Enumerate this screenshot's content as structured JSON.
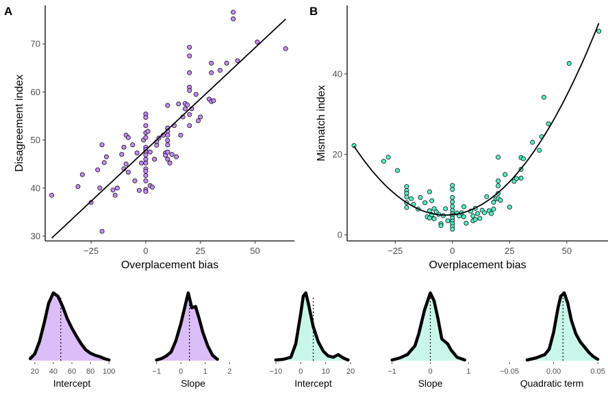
{
  "chart_data": [
    {
      "panel": "A",
      "type": "scatter",
      "xlabel": "Overplacement bias",
      "ylabel": "Disagreement index",
      "xticks": [
        -25,
        0,
        25,
        50
      ],
      "yticks": [
        30,
        40,
        50,
        60,
        70
      ],
      "xlim": [
        -46,
        68
      ],
      "ylim": [
        29,
        78
      ],
      "color": "#c58af5",
      "fit": {
        "kind": "linear",
        "intercept": 47.9,
        "slope": 0.426,
        "x_range": [
          -43,
          64
        ]
      },
      "points": [
        [
          -43,
          38.5
        ],
        [
          -31,
          40.3
        ],
        [
          -29,
          42.8
        ],
        [
          -25,
          37
        ],
        [
          -22,
          43.8
        ],
        [
          -21,
          40
        ],
        [
          -20,
          49
        ],
        [
          -20,
          31
        ],
        [
          -19,
          45.3
        ],
        [
          -18,
          46.5
        ],
        [
          -15,
          39.6
        ],
        [
          -14,
          38.5
        ],
        [
          -13,
          40
        ],
        [
          -11,
          47
        ],
        [
          -10,
          48.5
        ],
        [
          -10,
          44
        ],
        [
          -9,
          45
        ],
        [
          -9,
          51
        ],
        [
          -8,
          50.5
        ],
        [
          -8,
          43.3
        ],
        [
          -6,
          49
        ],
        [
          -5,
          41.5
        ],
        [
          -4,
          47.3
        ],
        [
          -3,
          39.5
        ],
        [
          -2,
          45.2
        ],
        [
          -1,
          50
        ],
        [
          0,
          55.4
        ],
        [
          0,
          54.7
        ],
        [
          0,
          53
        ],
        [
          0,
          51.5
        ],
        [
          0,
          50.5
        ],
        [
          0,
          48.5
        ],
        [
          0,
          48
        ],
        [
          0,
          47.5
        ],
        [
          0,
          46.9
        ],
        [
          0,
          46
        ],
        [
          0,
          45.2
        ],
        [
          0,
          44
        ],
        [
          0,
          43.5
        ],
        [
          0,
          42.6
        ],
        [
          0,
          41.5
        ],
        [
          0,
          39.7
        ],
        [
          0,
          39.3
        ],
        [
          1,
          51.8
        ],
        [
          2,
          47.5
        ],
        [
          2,
          40.5
        ],
        [
          3,
          40.2
        ],
        [
          4,
          46
        ],
        [
          5,
          49.6
        ],
        [
          5,
          48.9
        ],
        [
          6,
          50.4
        ],
        [
          8,
          51
        ],
        [
          9,
          47.3
        ],
        [
          9,
          46.8
        ],
        [
          10,
          57.2
        ],
        [
          10,
          52.5
        ],
        [
          10,
          51.8
        ],
        [
          10,
          51
        ],
        [
          10,
          49.9
        ],
        [
          10,
          49
        ],
        [
          10,
          47.5
        ],
        [
          10,
          46
        ],
        [
          11,
          45.2
        ],
        [
          12,
          47
        ],
        [
          13,
          53
        ],
        [
          14,
          46.5
        ],
        [
          15,
          57.5
        ],
        [
          16,
          51
        ],
        [
          17,
          54.8
        ],
        [
          18,
          57.6
        ],
        [
          18,
          56.5
        ],
        [
          19,
          57.3
        ],
        [
          20,
          69.3
        ],
        [
          20,
          67.5
        ],
        [
          20,
          64
        ],
        [
          20,
          61
        ],
        [
          20,
          60.3
        ],
        [
          20,
          55.3
        ],
        [
          20,
          53
        ],
        [
          21,
          56.5
        ],
        [
          23,
          59.5
        ],
        [
          24,
          54
        ],
        [
          25,
          54.8
        ],
        [
          29,
          58.5
        ],
        [
          30,
          66
        ],
        [
          30,
          64
        ],
        [
          30,
          58
        ],
        [
          31,
          58.2
        ],
        [
          34,
          64.5
        ],
        [
          37,
          66
        ],
        [
          40,
          76.6
        ],
        [
          40,
          75.2
        ],
        [
          42,
          66.5
        ],
        [
          51,
          70.4
        ],
        [
          64,
          69
        ]
      ]
    },
    {
      "panel": "B",
      "type": "scatter",
      "xlabel": "Overplacement bias",
      "ylabel": "Mismatch index",
      "xticks": [
        -25,
        0,
        25,
        50
      ],
      "yticks": [
        0,
        20,
        40
      ],
      "xlim": [
        -46,
        68
      ],
      "ylim": [
        -1.5,
        57
      ],
      "color": "#52f0c8",
      "fit": {
        "kind": "quadratic",
        "a": 5.0,
        "b": 0.062,
        "c": 0.01065,
        "x_range": [
          -43,
          64
        ]
      },
      "points": [
        [
          -43,
          22.2
        ],
        [
          -30,
          18.3
        ],
        [
          -28,
          19.3
        ],
        [
          -24,
          16
        ],
        [
          -20,
          12
        ],
        [
          -20,
          11
        ],
        [
          -20,
          10.3
        ],
        [
          -20,
          9.4
        ],
        [
          -20,
          8
        ],
        [
          -20,
          6.8
        ],
        [
          -18,
          9
        ],
        [
          -17,
          7.6
        ],
        [
          -15,
          6.4
        ],
        [
          -14,
          9.3
        ],
        [
          -12,
          8
        ],
        [
          -11,
          4.5
        ],
        [
          -10,
          10.7
        ],
        [
          -10,
          6
        ],
        [
          -10,
          4.2
        ],
        [
          -9,
          5
        ],
        [
          -9,
          8.5
        ],
        [
          -8,
          4
        ],
        [
          -8,
          6.5
        ],
        [
          -7,
          5.7
        ],
        [
          -6,
          5.1
        ],
        [
          -5,
          2.8
        ],
        [
          -5,
          2.3
        ],
        [
          -4,
          4.8
        ],
        [
          -3,
          6.5
        ],
        [
          -2,
          3.5
        ],
        [
          0,
          12.3
        ],
        [
          0,
          11.3
        ],
        [
          0,
          9.3
        ],
        [
          0,
          8.2
        ],
        [
          0,
          7.1
        ],
        [
          0,
          6.1
        ],
        [
          0,
          5.3
        ],
        [
          0,
          4.8
        ],
        [
          0,
          4.1
        ],
        [
          0,
          3.4
        ],
        [
          0,
          2.8
        ],
        [
          0,
          2.1
        ],
        [
          0,
          1.4
        ],
        [
          2,
          5.4
        ],
        [
          3,
          4.7
        ],
        [
          4,
          5.5
        ],
        [
          5,
          7
        ],
        [
          5,
          4.5
        ],
        [
          6,
          2.9
        ],
        [
          8,
          5.9
        ],
        [
          9,
          4.7
        ],
        [
          9,
          3.5
        ],
        [
          10,
          6.6
        ],
        [
          10,
          3.8
        ],
        [
          11,
          5.3
        ],
        [
          12,
          4.1
        ],
        [
          13,
          6.1
        ],
        [
          14,
          5.5
        ],
        [
          15,
          9.5
        ],
        [
          16,
          6
        ],
        [
          17,
          5.3
        ],
        [
          18,
          8.1
        ],
        [
          18,
          6.4
        ],
        [
          19,
          9
        ],
        [
          20,
          19.3
        ],
        [
          20,
          13.4
        ],
        [
          20,
          12.2
        ],
        [
          20,
          10.3
        ],
        [
          20,
          9
        ],
        [
          21,
          8.6
        ],
        [
          23,
          15
        ],
        [
          25,
          6.9
        ],
        [
          27,
          13.3
        ],
        [
          28,
          14
        ],
        [
          30,
          19.2
        ],
        [
          30,
          16.3
        ],
        [
          30,
          14.1
        ],
        [
          31,
          18.9
        ],
        [
          35,
          23
        ],
        [
          38,
          21
        ],
        [
          39,
          24.4
        ],
        [
          40,
          34.2
        ],
        [
          42,
          27.6
        ],
        [
          51,
          42.6
        ],
        [
          64,
          50.6
        ]
      ]
    },
    {
      "type": "area",
      "kind": "density",
      "label": "Intercept",
      "color": "#dbbdf7",
      "xticks": [
        20,
        40,
        60,
        80,
        100
      ],
      "xlim": [
        12,
        108
      ],
      "vline": 48,
      "curve": [
        [
          15,
          0.03
        ],
        [
          20,
          0.1
        ],
        [
          25,
          0.28
        ],
        [
          30,
          0.55
        ],
        [
          35,
          0.85
        ],
        [
          40,
          1.0
        ],
        [
          45,
          0.95
        ],
        [
          50,
          0.8
        ],
        [
          55,
          0.62
        ],
        [
          60,
          0.48
        ],
        [
          65,
          0.36
        ],
        [
          70,
          0.25
        ],
        [
          75,
          0.16
        ],
        [
          80,
          0.11
        ],
        [
          85,
          0.08
        ],
        [
          90,
          0.06
        ],
        [
          95,
          0.03
        ],
        [
          100,
          0.01
        ]
      ]
    },
    {
      "type": "area",
      "kind": "density",
      "label": "Slope",
      "color": "#dbbdf7",
      "xticks": [
        -1,
        0,
        1,
        2
      ],
      "xlim": [
        -1.3,
        2.3
      ],
      "vline": 0.35,
      "curve": [
        [
          -1,
          0.01
        ],
        [
          -0.8,
          0.03
        ],
        [
          -0.6,
          0.07
        ],
        [
          -0.4,
          0.13
        ],
        [
          -0.2,
          0.3
        ],
        [
          0,
          0.55
        ],
        [
          0.2,
          0.85
        ],
        [
          0.3,
          1.0
        ],
        [
          0.45,
          0.78
        ],
        [
          0.6,
          0.8
        ],
        [
          0.75,
          0.62
        ],
        [
          0.9,
          0.42
        ],
        [
          1.1,
          0.22
        ],
        [
          1.3,
          0.08
        ],
        [
          1.5,
          0.02
        ]
      ]
    },
    {
      "type": "area",
      "kind": "density",
      "label": "Intercept",
      "color": "#c8f7ea",
      "xticks": [
        -10,
        0,
        10,
        20
      ],
      "xlim": [
        -13,
        23
      ],
      "vline": 5,
      "curve": [
        [
          -10,
          0.01
        ],
        [
          -7,
          0.02
        ],
        [
          -4,
          0.05
        ],
        [
          -2,
          0.25
        ],
        [
          0,
          0.7
        ],
        [
          1,
          0.95
        ],
        [
          2,
          1.0
        ],
        [
          3,
          0.85
        ],
        [
          5,
          0.5
        ],
        [
          7,
          0.28
        ],
        [
          9,
          0.14
        ],
        [
          11,
          0.07
        ],
        [
          13,
          0.05
        ],
        [
          15,
          0.09
        ],
        [
          17,
          0.04
        ],
        [
          19,
          0.01
        ]
      ]
    },
    {
      "type": "area",
      "kind": "density",
      "label": "Slope",
      "color": "#c8f7ea",
      "xticks": [
        -1,
        0,
        1
      ],
      "xlim": [
        -1.1,
        1.1
      ],
      "vline": 0,
      "curve": [
        [
          -1,
          0.01
        ],
        [
          -0.8,
          0.04
        ],
        [
          -0.6,
          0.09
        ],
        [
          -0.4,
          0.22
        ],
        [
          -0.3,
          0.4
        ],
        [
          -0.15,
          0.75
        ],
        [
          0,
          1.0
        ],
        [
          0.1,
          0.88
        ],
        [
          0.2,
          0.62
        ],
        [
          0.3,
          0.32
        ],
        [
          0.45,
          0.25
        ],
        [
          0.55,
          0.15
        ],
        [
          0.7,
          0.05
        ],
        [
          0.9,
          0.01
        ]
      ]
    },
    {
      "type": "area",
      "kind": "density",
      "label": "Quadratic term",
      "color": "#c8f7ea",
      "xticks": [
        -0.05,
        0.0,
        0.05
      ],
      "xtick_labels": [
        "−0.05",
        "0.00",
        "0.05"
      ],
      "xlim": [
        -0.057,
        0.053
      ],
      "vline": 0.0106,
      "curve": [
        [
          -0.03,
          0.01
        ],
        [
          -0.02,
          0.04
        ],
        [
          -0.01,
          0.09
        ],
        [
          -0.005,
          0.17
        ],
        [
          0,
          0.42
        ],
        [
          0.005,
          0.78
        ],
        [
          0.008,
          0.95
        ],
        [
          0.012,
          1.0
        ],
        [
          0.016,
          0.85
        ],
        [
          0.02,
          0.6
        ],
        [
          0.025,
          0.4
        ],
        [
          0.03,
          0.28
        ],
        [
          0.035,
          0.2
        ],
        [
          0.04,
          0.12
        ],
        [
          0.045,
          0.06
        ],
        [
          0.05,
          0.02
        ]
      ]
    }
  ],
  "panel_labels": {
    "a": "A",
    "b": "B"
  }
}
